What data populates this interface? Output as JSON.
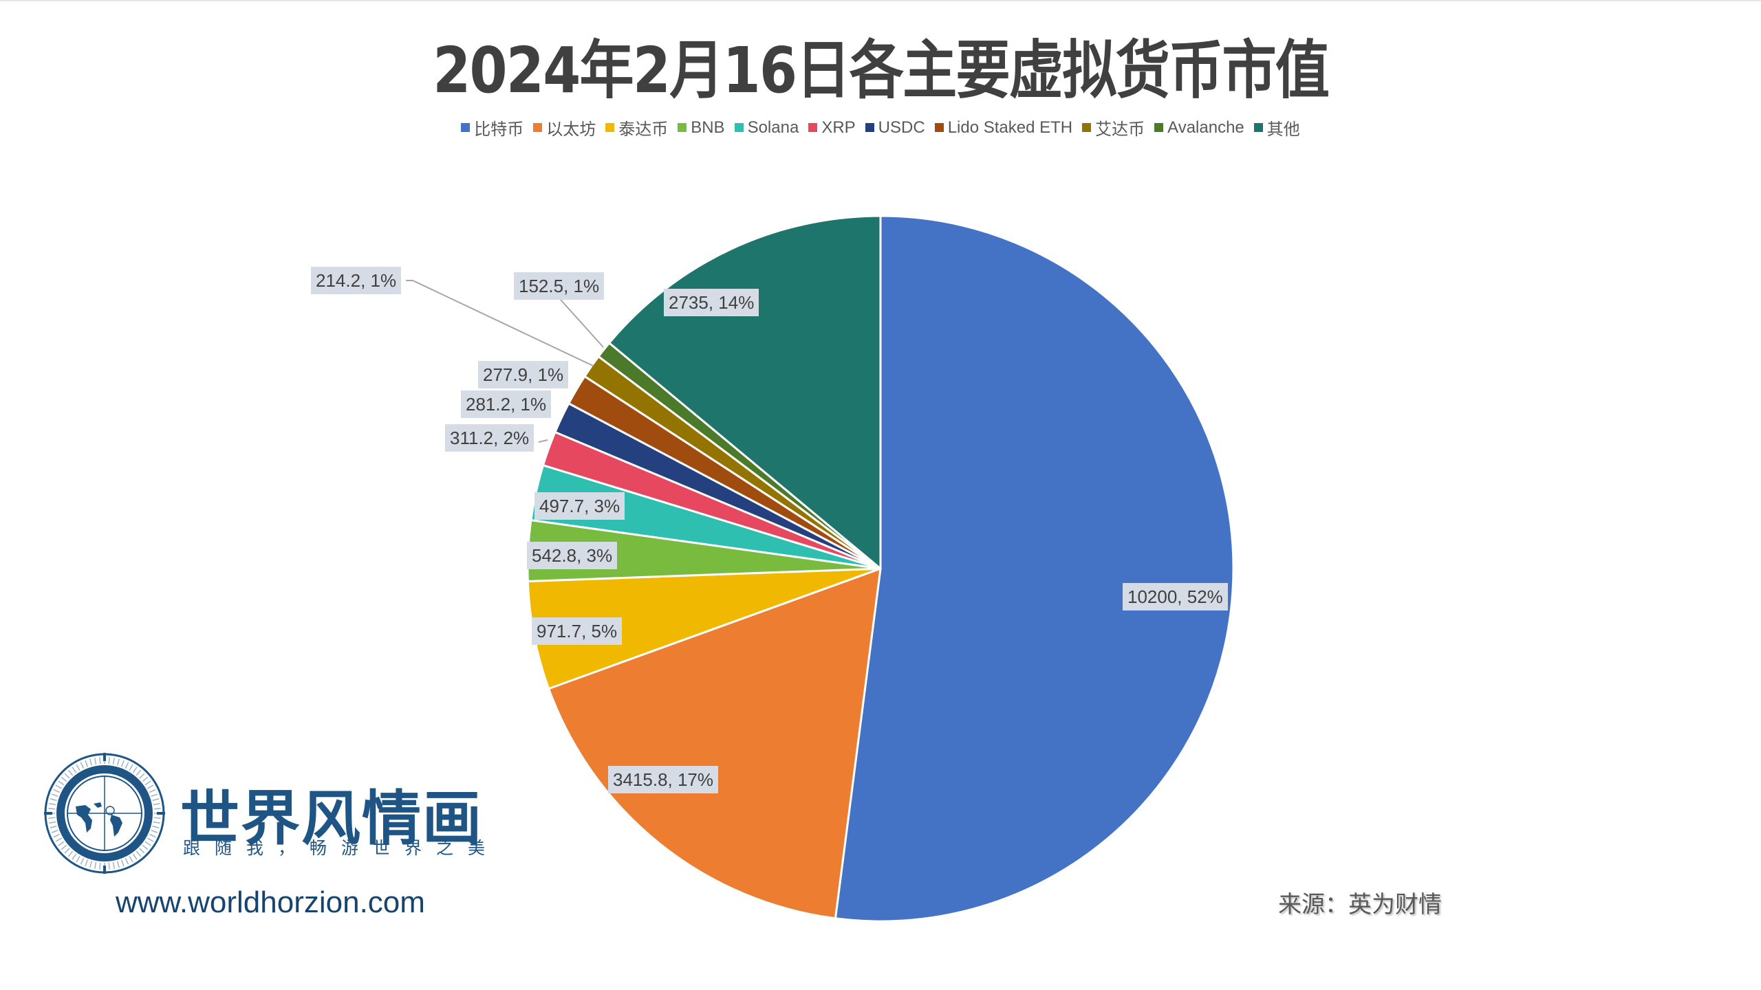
{
  "title": "2024年2月16日各主要虚拟货币市值",
  "legend": [
    {
      "name": "比特币",
      "color": "#4472c4"
    },
    {
      "name": "以太坊",
      "color": "#ed7d31"
    },
    {
      "name": "泰达币",
      "color": "#f1b800"
    },
    {
      "name": "BNB",
      "color": "#78bb3f"
    },
    {
      "name": "Solana",
      "color": "#2fbfb0"
    },
    {
      "name": "XRP",
      "color": "#e5485f"
    },
    {
      "name": "USDC",
      "color": "#24407e"
    },
    {
      "name": "Lido Staked ETH",
      "color": "#a04c0e"
    },
    {
      "name": "艾达币",
      "color": "#947400"
    },
    {
      "name": "Avalanche",
      "color": "#4a7a2a"
    },
    {
      "name": "其他",
      "color": "#1e756b"
    }
  ],
  "chart_data": {
    "type": "pie",
    "title": "2024年2月16日各主要虚拟货币市值",
    "categories": [
      "比特币",
      "以太坊",
      "泰达币",
      "BNB",
      "Solana",
      "XRP",
      "USDC",
      "Lido Staked ETH",
      "艾达币",
      "Avalanche",
      "其他"
    ],
    "values": [
      10200,
      3415.8,
      971.7,
      542.8,
      497.7,
      311.2,
      281.2,
      277.9,
      214.2,
      152.5,
      2735
    ],
    "percentages": [
      52,
      17,
      5,
      3,
      3,
      2,
      1,
      1,
      1,
      1,
      14
    ],
    "data_labels": [
      "10200, 52%",
      "3415.8, 17%",
      "971.7, 5%",
      "542.8, 3%",
      "497.7, 3%",
      "311.2, 2%",
      "281.2, 1%",
      "277.9, 1%",
      "214.2, 1%",
      "152.5, 1%",
      "2735, 14%"
    ],
    "colors": [
      "#4472c4",
      "#ed7d31",
      "#f1b800",
      "#78bb3f",
      "#2fbfb0",
      "#e5485f",
      "#24407e",
      "#a04c0e",
      "#947400",
      "#4a7a2a",
      "#1e756b"
    ],
    "start_angle": "12 o'clock",
    "direction": "clockwise",
    "legend_position": "top"
  },
  "labels": {
    "btc": "10200, 52%",
    "eth": "3415.8, 17%",
    "usdt": "971.7, 5%",
    "bnb": "542.8, 3%",
    "sol": "497.7, 3%",
    "xrp": "311.2, 2%",
    "usdc": "281.2, 1%",
    "steth": "277.9, 1%",
    "ada": "214.2, 1%",
    "avax": "152.5, 1%",
    "other": "2735, 14%"
  },
  "branding": {
    "name": "世界风情画",
    "slogan": "跟随我，畅游世界之美",
    "website": "www.worldhorzion.com"
  },
  "source": "来源：英为财情"
}
